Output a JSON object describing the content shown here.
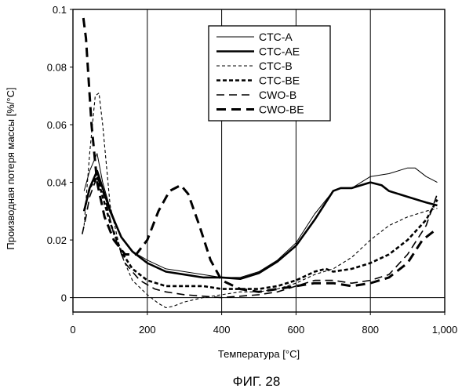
{
  "chart_data": {
    "type": "line",
    "title": "",
    "xlabel": "Температура [°C]",
    "ylabel": "Производная потеря массы [%/°C]",
    "xlim": [
      0,
      1000
    ],
    "ylim": [
      -0.005,
      0.1
    ],
    "x_ticks": [
      0,
      200,
      400,
      600,
      800,
      1000
    ],
    "x_tick_labels": [
      "0",
      "200",
      "400",
      "600",
      "800",
      "1,000"
    ],
    "y_ticks": [
      0,
      0.02,
      0.04,
      0.06,
      0.08,
      0.1
    ],
    "y_tick_labels": [
      "0",
      "0.02",
      "0.04",
      "0.06",
      "0.08",
      "0.1"
    ],
    "vertical_grid": [
      200,
      400,
      600,
      800
    ],
    "zero_line": 0,
    "legend_position": "top-center",
    "caption": "ФИГ. 28",
    "series": [
      {
        "name": "CTC-A",
        "style": "thin-solid",
        "x": [
          30,
          45,
          65,
          80,
          100,
          130,
          160,
          200,
          250,
          300,
          350,
          400,
          450,
          500,
          550,
          600,
          650,
          700,
          720,
          750,
          800,
          850,
          900,
          920,
          950,
          980
        ],
        "y": [
          0.037,
          0.044,
          0.05,
          0.04,
          0.031,
          0.021,
          0.016,
          0.013,
          0.01,
          0.009,
          0.008,
          0.007,
          0.007,
          0.009,
          0.013,
          0.019,
          0.029,
          0.037,
          0.038,
          0.038,
          0.042,
          0.043,
          0.045,
          0.045,
          0.042,
          0.04
        ]
      },
      {
        "name": "CTC-AE",
        "style": "thick-solid",
        "x": [
          30,
          45,
          65,
          80,
          100,
          130,
          160,
          200,
          250,
          300,
          350,
          400,
          450,
          500,
          550,
          600,
          650,
          700,
          720,
          750,
          800,
          830,
          850,
          900,
          950,
          980
        ],
        "y": [
          0.03,
          0.038,
          0.044,
          0.038,
          0.03,
          0.021,
          0.016,
          0.012,
          0.009,
          0.008,
          0.007,
          0.007,
          0.0065,
          0.0085,
          0.0125,
          0.018,
          0.027,
          0.037,
          0.038,
          0.038,
          0.04,
          0.039,
          0.037,
          0.035,
          0.033,
          0.032
        ]
      },
      {
        "name": "CTC-B",
        "style": "thin-dash",
        "x": [
          30,
          45,
          60,
          70,
          80,
          100,
          130,
          160,
          200,
          230,
          250,
          270,
          300,
          350,
          400,
          450,
          500,
          550,
          600,
          650,
          700,
          750,
          800,
          850,
          900,
          950,
          980
        ],
        "y": [
          0.025,
          0.05,
          0.07,
          0.071,
          0.06,
          0.032,
          0.015,
          0.006,
          0.001,
          -0.002,
          -0.0035,
          -0.003,
          -0.0015,
          0.0,
          0.001,
          0.002,
          0.002,
          0.003,
          0.005,
          0.008,
          0.01,
          0.014,
          0.02,
          0.025,
          0.028,
          0.03,
          0.031
        ]
      },
      {
        "name": "CTC-BE",
        "style": "thick-dash",
        "x": [
          30,
          45,
          65,
          80,
          100,
          130,
          160,
          200,
          250,
          300,
          350,
          400,
          450,
          500,
          550,
          600,
          650,
          680,
          700,
          750,
          800,
          850,
          900,
          950,
          980
        ],
        "y": [
          0.03,
          0.038,
          0.042,
          0.035,
          0.026,
          0.016,
          0.01,
          0.006,
          0.004,
          0.004,
          0.004,
          0.003,
          0.003,
          0.003,
          0.004,
          0.006,
          0.009,
          0.01,
          0.009,
          0.01,
          0.012,
          0.015,
          0.02,
          0.027,
          0.034
        ]
      },
      {
        "name": "CWO-B",
        "style": "thin-longdash",
        "x": [
          25,
          35,
          45,
          65,
          85,
          110,
          140,
          180,
          220,
          250,
          300,
          350,
          400,
          450,
          500,
          550,
          600,
          650,
          700,
          750,
          800,
          850,
          900,
          950,
          980
        ],
        "y": [
          0.022,
          0.028,
          0.035,
          0.042,
          0.035,
          0.022,
          0.012,
          0.006,
          0.003,
          0.002,
          0.001,
          0.0005,
          0.0,
          0.0005,
          0.001,
          0.002,
          0.004,
          0.006,
          0.006,
          0.005,
          0.006,
          0.008,
          0.015,
          0.025,
          0.036
        ]
      },
      {
        "name": "CWO-BE",
        "style": "thick-longdash",
        "x": [
          28,
          35,
          50,
          65,
          85,
          110,
          140,
          170,
          200,
          230,
          260,
          290,
          310,
          340,
          370,
          400,
          450,
          500,
          550,
          600,
          650,
          700,
          750,
          800,
          850,
          900,
          940,
          970
        ],
        "y": [
          0.097,
          0.09,
          0.06,
          0.04,
          0.028,
          0.02,
          0.015,
          0.015,
          0.02,
          0.03,
          0.037,
          0.039,
          0.036,
          0.025,
          0.013,
          0.006,
          0.003,
          0.002,
          0.003,
          0.004,
          0.005,
          0.005,
          0.004,
          0.005,
          0.007,
          0.012,
          0.02,
          0.023
        ]
      }
    ]
  }
}
